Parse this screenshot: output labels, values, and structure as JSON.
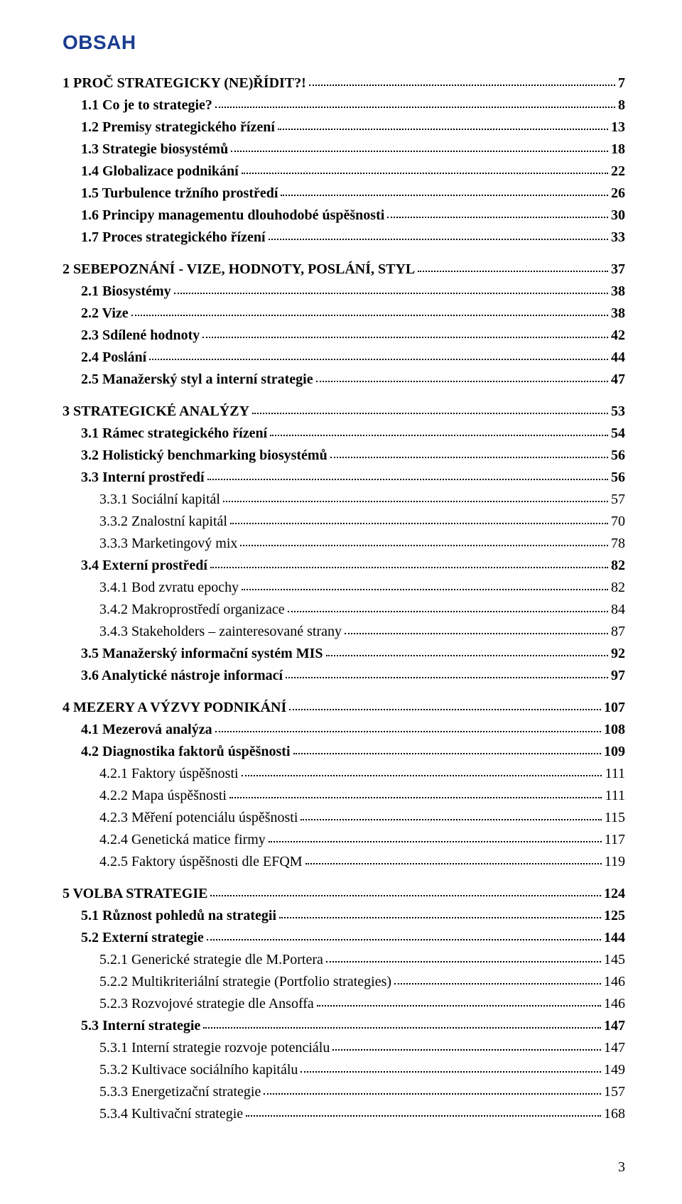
{
  "heading": "OBSAH",
  "footer_page": "3",
  "entries": [
    {
      "label": "1 PROČ STRATEGICKY (NE)ŘÍDIT?!",
      "page": "7",
      "level": 1,
      "bold": true,
      "gap": false
    },
    {
      "label": "1.1 Co je to strategie?",
      "page": "8",
      "level": 2,
      "bold": true,
      "gap": false
    },
    {
      "label": "1.2 Premisy strategického řízení",
      "page": "13",
      "level": 2,
      "bold": true,
      "gap": false
    },
    {
      "label": "1.3 Strategie biosystémů",
      "page": "18",
      "level": 2,
      "bold": true,
      "gap": false
    },
    {
      "label": "1.4 Globalizace podnikání",
      "page": "22",
      "level": 2,
      "bold": true,
      "gap": false
    },
    {
      "label": "1.5 Turbulence tržního prostředí",
      "page": "26",
      "level": 2,
      "bold": true,
      "gap": false
    },
    {
      "label": "1.6 Principy managementu dlouhodobé úspěšnosti",
      "page": "30",
      "level": 2,
      "bold": true,
      "gap": false
    },
    {
      "label": "1.7 Proces strategického řízení",
      "page": "33",
      "level": 2,
      "bold": true,
      "gap": false
    },
    {
      "label": "2 SEBEPOZNÁNÍ - VIZE, HODNOTY, POSLÁNÍ, STYL",
      "page": "37",
      "level": 1,
      "bold": true,
      "gap": true
    },
    {
      "label": "2.1 Biosystémy",
      "page": "38",
      "level": 2,
      "bold": true,
      "gap": false
    },
    {
      "label": "2.2 Vize",
      "page": "38",
      "level": 2,
      "bold": true,
      "gap": false
    },
    {
      "label": "2.3 Sdílené hodnoty",
      "page": "42",
      "level": 2,
      "bold": true,
      "gap": false
    },
    {
      "label": "2.4 Poslání",
      "page": "44",
      "level": 2,
      "bold": true,
      "gap": false
    },
    {
      "label": "2.5 Manažerský styl a interní strategie",
      "page": "47",
      "level": 2,
      "bold": true,
      "gap": false
    },
    {
      "label": "3 STRATEGICKÉ ANALÝZY",
      "page": "53",
      "level": 1,
      "bold": true,
      "gap": true
    },
    {
      "label": "3.1 Rámec strategického řízení",
      "page": "54",
      "level": 2,
      "bold": true,
      "gap": false
    },
    {
      "label": "3.2 Holistický benchmarking  biosystémů",
      "page": "56",
      "level": 2,
      "bold": true,
      "gap": false
    },
    {
      "label": "3.3 Interní prostředí",
      "page": "56",
      "level": 2,
      "bold": true,
      "gap": false
    },
    {
      "label": "3.3.1 Sociální kapitál",
      "page": "57",
      "level": 3,
      "bold": false,
      "gap": false
    },
    {
      "label": "3.3.2 Znalostní kapitál",
      "page": "70",
      "level": 3,
      "bold": false,
      "gap": false
    },
    {
      "label": "3.3.3 Marketingový mix",
      "page": "78",
      "level": 3,
      "bold": false,
      "gap": false
    },
    {
      "label": "3.4 Externí prostředí",
      "page": "82",
      "level": 2,
      "bold": true,
      "gap": false
    },
    {
      "label": "3.4.1 Bod zvratu epochy",
      "page": "82",
      "level": 3,
      "bold": false,
      "gap": false
    },
    {
      "label": "3.4.2 Makroprostředí organizace",
      "page": "84",
      "level": 3,
      "bold": false,
      "gap": false
    },
    {
      "label": "3.4.3 Stakeholders – zainteresované strany",
      "page": "87",
      "level": 3,
      "bold": false,
      "gap": false
    },
    {
      "label": "3.5 Manažerský informační systém MIS",
      "page": "92",
      "level": 2,
      "bold": true,
      "gap": false
    },
    {
      "label": "3.6 Analytické nástroje informací",
      "page": "97",
      "level": 2,
      "bold": true,
      "gap": false
    },
    {
      "label": "4 MEZERY A VÝZVY PODNIKÁNÍ",
      "page": "107",
      "level": 1,
      "bold": true,
      "gap": true
    },
    {
      "label": "4.1 Mezerová analýza",
      "page": "108",
      "level": 2,
      "bold": true,
      "gap": false
    },
    {
      "label": "4.2 Diagnostika faktorů úspěšnosti",
      "page": "109",
      "level": 2,
      "bold": true,
      "gap": false
    },
    {
      "label": "4.2.1 Faktory úspěšnosti",
      "page": "111",
      "level": 3,
      "bold": false,
      "gap": false
    },
    {
      "label": "4.2.2 Mapa úspěšnosti",
      "page": "111",
      "level": 3,
      "bold": false,
      "gap": false
    },
    {
      "label": "4.2.3 Měření potenciálu úspěšnosti",
      "page": "115",
      "level": 3,
      "bold": false,
      "gap": false
    },
    {
      "label": "4.2.4 Genetická matice firmy",
      "page": "117",
      "level": 3,
      "bold": false,
      "gap": false
    },
    {
      "label": "4.2.5 Faktory úspěšnosti dle EFQM",
      "page": "119",
      "level": 3,
      "bold": false,
      "gap": false
    },
    {
      "label": "5 VOLBA STRATEGIE",
      "page": "124",
      "level": 1,
      "bold": true,
      "gap": true
    },
    {
      "label": "5.1 Různost pohledů na strategii",
      "page": "125",
      "level": 2,
      "bold": true,
      "gap": false
    },
    {
      "label": "5.2 Externí strategie",
      "page": "144",
      "level": 2,
      "bold": true,
      "gap": false
    },
    {
      "label": "5.2.1 Generické strategie dle M.Portera",
      "page": "145",
      "level": 3,
      "bold": false,
      "gap": false
    },
    {
      "label": "5.2.2 Multikriteriální strategie (Portfolio strategies)",
      "page": "146",
      "level": 3,
      "bold": false,
      "gap": false
    },
    {
      "label": "5.2.3 Rozvojové strategie dle Ansoffa",
      "page": "146",
      "level": 3,
      "bold": false,
      "gap": false
    },
    {
      "label": "5.3 Interní strategie",
      "page": "147",
      "level": 2,
      "bold": true,
      "gap": false
    },
    {
      "label": "5.3.1 Interní strategie rozvoje potenciálu",
      "page": "147",
      "level": 3,
      "bold": false,
      "gap": false
    },
    {
      "label": "5.3.2 Kultivace sociálního kapitálu",
      "page": "149",
      "level": 3,
      "bold": false,
      "gap": false
    },
    {
      "label": "5.3.3 Energetizační strategie",
      "page": "157",
      "level": 3,
      "bold": false,
      "gap": false
    },
    {
      "label": "5.3.4 Kultivační strategie",
      "page": "168",
      "level": 3,
      "bold": false,
      "gap": false
    }
  ]
}
